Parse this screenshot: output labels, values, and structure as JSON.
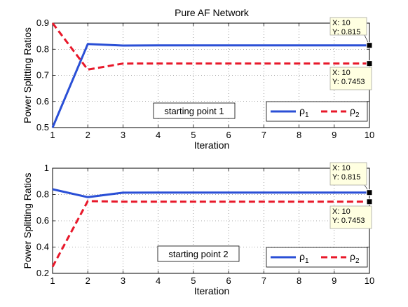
{
  "chart_data": [
    {
      "type": "line",
      "title": "Pure AF Network",
      "xlabel": "Iteration",
      "ylabel": "Power Splitting Ratios",
      "xlim": [
        1,
        10
      ],
      "ylim": [
        0.5,
        0.9
      ],
      "xticks": [
        1,
        2,
        3,
        4,
        5,
        6,
        7,
        8,
        9,
        10
      ],
      "yticks": [
        0.5,
        0.6,
        0.7,
        0.8,
        0.9
      ],
      "grid": true,
      "legend_position": "bottom-right",
      "annotation": "starting point 1",
      "x": [
        1,
        2,
        3,
        4,
        5,
        6,
        7,
        8,
        9,
        10
      ],
      "series": [
        {
          "name": "ρ",
          "sub": "1",
          "color": "#2a4fd6",
          "style": "solid",
          "values": [
            0.5,
            0.82,
            0.814,
            0.815,
            0.815,
            0.815,
            0.815,
            0.815,
            0.815,
            0.815
          ]
        },
        {
          "name": "ρ",
          "sub": "2",
          "color": "#e8182a",
          "style": "dashed",
          "values": [
            0.9,
            0.722,
            0.745,
            0.7453,
            0.7453,
            0.7453,
            0.7453,
            0.7453,
            0.7453,
            0.7453
          ]
        }
      ],
      "datatips": [
        {
          "series": 0,
          "x_label": "X: 10",
          "y_label": "Y: 0.815",
          "placement": "above"
        },
        {
          "series": 1,
          "x_label": "X: 10",
          "y_label": "Y: 0.7453",
          "placement": "below"
        }
      ]
    },
    {
      "type": "line",
      "title": "",
      "xlabel": "Iteration",
      "ylabel": "Power Splitting Ratios",
      "xlim": [
        1,
        10
      ],
      "ylim": [
        0.2,
        1.0
      ],
      "xticks": [
        1,
        2,
        3,
        4,
        5,
        6,
        7,
        8,
        9,
        10
      ],
      "yticks": [
        0.2,
        0.4,
        0.6,
        0.8,
        1.0
      ],
      "ytick_labels": [
        "0.2",
        "0.4",
        "0.6",
        "0.8",
        "1"
      ],
      "grid": true,
      "legend_position": "bottom-right",
      "annotation": "starting point 2",
      "x": [
        1,
        2,
        3,
        4,
        5,
        6,
        7,
        8,
        9,
        10
      ],
      "series": [
        {
          "name": "ρ",
          "sub": "1",
          "color": "#2a4fd6",
          "style": "solid",
          "values": [
            0.84,
            0.78,
            0.814,
            0.815,
            0.815,
            0.815,
            0.815,
            0.815,
            0.815,
            0.815
          ]
        },
        {
          "name": "ρ",
          "sub": "2",
          "color": "#e8182a",
          "style": "dashed",
          "values": [
            0.25,
            0.75,
            0.745,
            0.7453,
            0.7453,
            0.7453,
            0.7453,
            0.7453,
            0.7453,
            0.7453
          ]
        }
      ],
      "datatips": [
        {
          "series": 0,
          "x_label": "X: 10",
          "y_label": "Y: 0.815",
          "placement": "above"
        },
        {
          "series": 1,
          "x_label": "X: 10",
          "y_label": "Y: 0.7453",
          "placement": "below"
        }
      ]
    }
  ]
}
